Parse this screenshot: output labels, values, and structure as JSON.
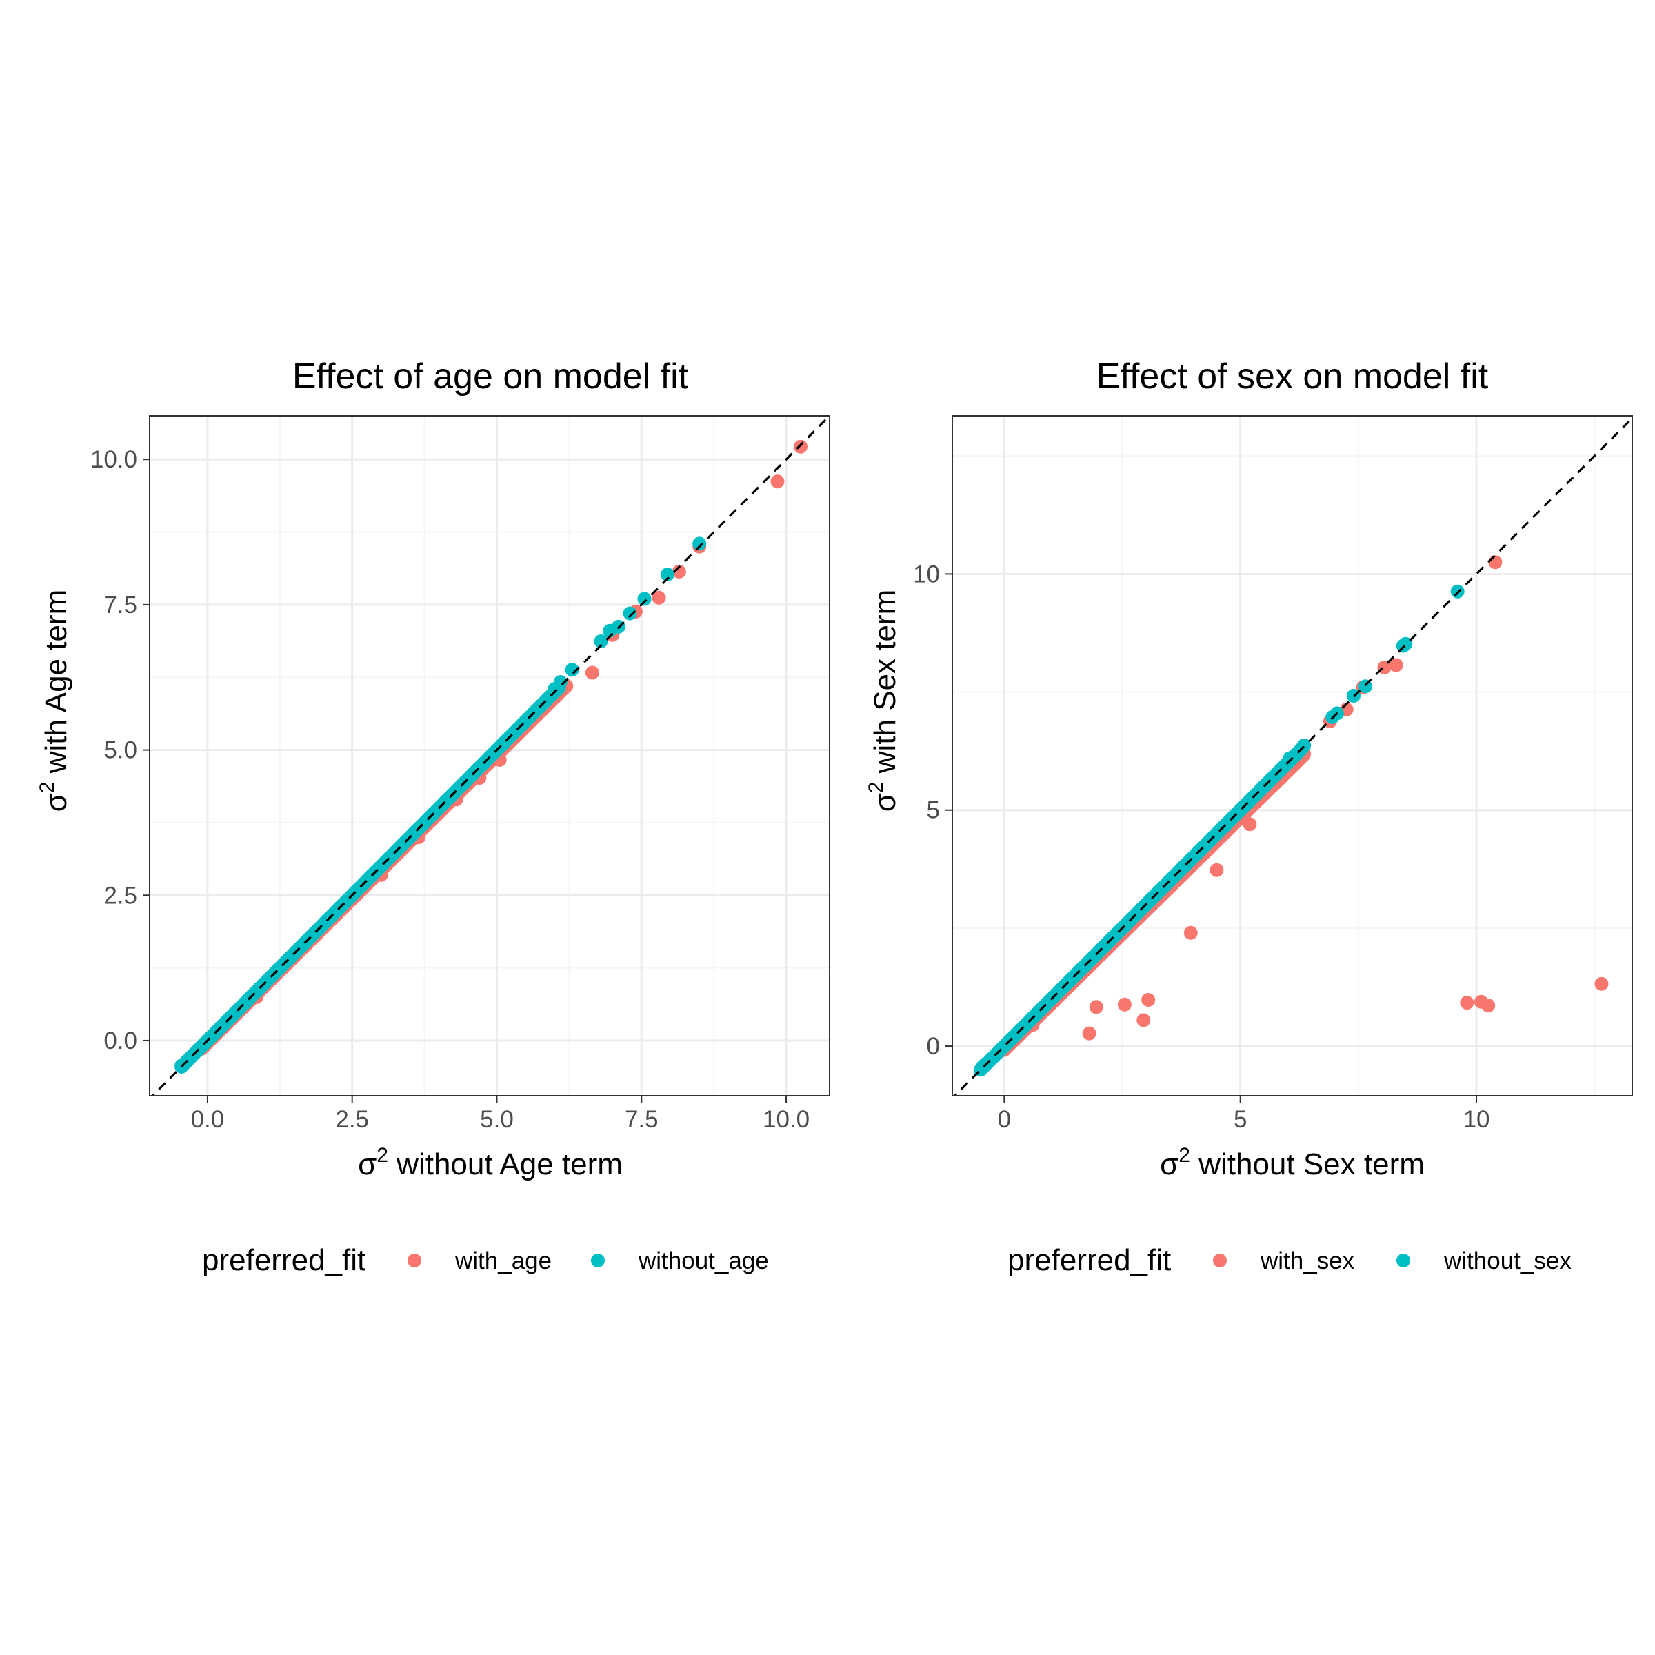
{
  "colors": {
    "with": "#F8766D",
    "without": "#00BFC4",
    "grid_major": "#EBEBEB",
    "grid_minor": "#F5F5F5",
    "panel_border": "#333333",
    "tick_text": "#4D4D4D",
    "diagonal": "#000000"
  },
  "chart_data": [
    {
      "type": "scatter",
      "title": "Effect of age on model fit",
      "xlabel": {
        "symbol": "σ",
        "sup": "2",
        "rest": " without Age term"
      },
      "ylabel": {
        "symbol": "σ",
        "sup": "2",
        "rest": " with Age term"
      },
      "xlim": [
        -1.0,
        10.75
      ],
      "ylim": [
        -0.95,
        10.75
      ],
      "xticks": [
        0,
        2.5,
        5,
        7.5,
        10
      ],
      "xticklabels": [
        "0.0",
        "2.5",
        "5.0",
        "7.5",
        "10.0"
      ],
      "yticks": [
        0,
        2.5,
        5,
        7.5,
        10
      ],
      "yticklabels": [
        "0.0",
        "2.5",
        "5.0",
        "7.5",
        "10.0"
      ],
      "xminor": [
        -1.25,
        1.25,
        3.75,
        6.25,
        8.75
      ],
      "yminor": [
        -1.25,
        1.25,
        3.75,
        6.25,
        8.75
      ],
      "reference_line": "y = x (dashed)",
      "grid": true,
      "legend": {
        "title": "preferred_fit",
        "position": "bottom",
        "entries": [
          "with_age",
          "without_age"
        ]
      },
      "series": [
        {
          "name": "with_age",
          "dense_band": {
            "x_from": -0.1,
            "x_to": 6.2,
            "offset_from": -0.04,
            "offset_to": -0.1,
            "step": 0.05
          },
          "points": [
            [
              10.25,
              10.22
            ],
            [
              9.85,
              9.62
            ],
            [
              8.15,
              8.07
            ],
            [
              7.8,
              7.62
            ],
            [
              7.4,
              7.38
            ],
            [
              7.0,
              6.98
            ],
            [
              6.65,
              6.33
            ],
            [
              8.5,
              8.5
            ],
            [
              6.2,
              6.1
            ],
            [
              5.05,
              4.83
            ],
            [
              4.7,
              4.52
            ],
            [
              3.65,
              3.5
            ],
            [
              3.0,
              2.85
            ],
            [
              0.85,
              0.75
            ],
            [
              4.3,
              4.15
            ],
            [
              5.8,
              5.7
            ]
          ]
        },
        {
          "name": "without_age",
          "dense_band": {
            "x_from": -0.45,
            "x_to": 6.1,
            "offset_from": 0.0,
            "offset_to": 0.0,
            "step": 0.045
          },
          "points": [
            [
              8.5,
              8.55
            ],
            [
              7.95,
              8.02
            ],
            [
              7.55,
              7.6
            ],
            [
              7.3,
              7.35
            ],
            [
              7.1,
              7.12
            ],
            [
              6.95,
              7.05
            ],
            [
              6.8,
              6.87
            ],
            [
              6.3,
              6.38
            ],
            [
              6.1,
              6.17
            ],
            [
              6.0,
              6.05
            ],
            [
              -0.45,
              -0.43
            ],
            [
              -0.4,
              -0.4
            ],
            [
              -0.3,
              -0.3
            ]
          ]
        }
      ]
    },
    {
      "type": "scatter",
      "title": "Effect of sex on model fit",
      "xlabel": {
        "symbol": "σ",
        "sup": "2",
        "rest": " without Sex term"
      },
      "ylabel": {
        "symbol": "σ",
        "sup": "2",
        "rest": " with Sex term"
      },
      "xlim": [
        -1.1,
        13.3
      ],
      "ylim": [
        -1.05,
        13.35
      ],
      "xticks": [
        0,
        5,
        10
      ],
      "xticklabels": [
        "0",
        "5",
        "10"
      ],
      "yticks": [
        0,
        5,
        10
      ],
      "yticklabels": [
        "0",
        "5",
        "10"
      ],
      "xminor": [
        2.5,
        7.5,
        12.5
      ],
      "yminor": [
        2.5,
        7.5,
        12.5
      ],
      "reference_line": "y = x (dashed)",
      "grid": true,
      "legend": {
        "title": "preferred_fit",
        "position": "bottom",
        "entries": [
          "with_sex",
          "without_sex"
        ]
      },
      "series": [
        {
          "name": "with_sex",
          "dense_band": {
            "x_from": 0.0,
            "x_to": 6.35,
            "offset_from": -0.08,
            "offset_to": -0.18,
            "step": 0.055
          },
          "points": [
            [
              12.65,
              1.32
            ],
            [
              10.25,
              0.86
            ],
            [
              10.1,
              0.94
            ],
            [
              9.8,
              0.92
            ],
            [
              10.4,
              10.25
            ],
            [
              8.3,
              8.07
            ],
            [
              8.05,
              8.02
            ],
            [
              7.25,
              7.13
            ],
            [
              6.9,
              6.88
            ],
            [
              6.35,
              6.19
            ],
            [
              5.85,
              5.67
            ],
            [
              5.2,
              4.7
            ],
            [
              4.5,
              3.73
            ],
            [
              3.95,
              2.4
            ],
            [
              3.05,
              0.98
            ],
            [
              2.95,
              0.55
            ],
            [
              2.55,
              0.88
            ],
            [
              1.95,
              0.83
            ],
            [
              1.8,
              0.27
            ],
            [
              0.6,
              0.45
            ],
            [
              -0.45,
              -0.45
            ],
            [
              7.6,
              7.6
            ]
          ]
        },
        {
          "name": "without_sex",
          "dense_band": {
            "x_from": -0.5,
            "x_to": 6.3,
            "offset_from": 0.0,
            "offset_to": 0.0,
            "step": 0.05
          },
          "points": [
            [
              9.6,
              9.63
            ],
            [
              8.5,
              8.52
            ],
            [
              8.45,
              8.48
            ],
            [
              7.65,
              7.62
            ],
            [
              7.4,
              7.42
            ],
            [
              7.05,
              7.05
            ],
            [
              6.95,
              6.97
            ],
            [
              6.35,
              6.37
            ],
            [
              6.2,
              6.2
            ],
            [
              6.05,
              6.1
            ],
            [
              -0.45,
              -0.43
            ],
            [
              -0.4,
              -0.38
            ]
          ]
        }
      ]
    }
  ]
}
